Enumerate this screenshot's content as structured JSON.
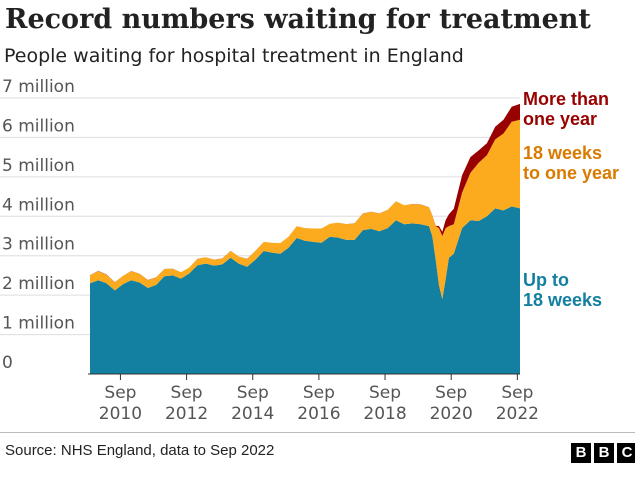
{
  "chart_data": {
    "type": "area",
    "stacked": true,
    "title": "Record numbers waiting for treatment",
    "subtitle": "People waiting for hospital treatment in England",
    "ylim": [
      0,
      7000000
    ],
    "xlim": [
      2009.75,
      2022.75
    ],
    "y_ticks": [
      {
        "value": 0,
        "label": "0"
      },
      {
        "value": 1000000,
        "label": "1 million"
      },
      {
        "value": 2000000,
        "label": "2 million"
      },
      {
        "value": 3000000,
        "label": "3 million"
      },
      {
        "value": 4000000,
        "label": "4 million"
      },
      {
        "value": 5000000,
        "label": "5 million"
      },
      {
        "value": 6000000,
        "label": "6 million"
      },
      {
        "value": 7000000,
        "label": "7 million"
      }
    ],
    "x_ticks": [
      {
        "value": 2010.67,
        "month": "Sep",
        "year": "2010"
      },
      {
        "value": 2012.67,
        "month": "Sep",
        "year": "2012"
      },
      {
        "value": 2014.67,
        "month": "Sep",
        "year": "2014"
      },
      {
        "value": 2016.67,
        "month": "Sep",
        "year": "2016"
      },
      {
        "value": 2018.67,
        "month": "Sep",
        "year": "2018"
      },
      {
        "value": 2020.67,
        "month": "Sep",
        "year": "2020"
      },
      {
        "value": 2022.67,
        "month": "Sep",
        "year": "2022"
      }
    ],
    "grid": true,
    "x": [
      2009.75,
      2010.0,
      2010.25,
      2010.5,
      2010.75,
      2011.0,
      2011.25,
      2011.5,
      2011.75,
      2012.0,
      2012.25,
      2012.5,
      2012.75,
      2013.0,
      2013.25,
      2013.5,
      2013.75,
      2014.0,
      2014.25,
      2014.5,
      2014.75,
      2015.0,
      2015.25,
      2015.5,
      2015.75,
      2016.0,
      2016.25,
      2016.5,
      2016.75,
      2017.0,
      2017.25,
      2017.5,
      2017.75,
      2018.0,
      2018.25,
      2018.5,
      2018.75,
      2019.0,
      2019.25,
      2019.5,
      2019.75,
      2020.0,
      2020.1,
      2020.2,
      2020.3,
      2020.4,
      2020.5,
      2020.6,
      2020.75,
      2021.0,
      2021.25,
      2021.5,
      2021.75,
      2022.0,
      2022.25,
      2022.5,
      2022.75
    ],
    "series": [
      {
        "name": "Up to 18 weeks",
        "color": "#1380a1",
        "values": [
          2300000,
          2380000,
          2300000,
          2120000,
          2280000,
          2380000,
          2320000,
          2180000,
          2260000,
          2480000,
          2500000,
          2420000,
          2550000,
          2760000,
          2800000,
          2750000,
          2780000,
          2950000,
          2800000,
          2720000,
          2900000,
          3120000,
          3080000,
          3050000,
          3200000,
          3450000,
          3380000,
          3350000,
          3330000,
          3480000,
          3460000,
          3400000,
          3400000,
          3650000,
          3680000,
          3620000,
          3700000,
          3900000,
          3800000,
          3820000,
          3800000,
          3750000,
          3500000,
          2900000,
          2250000,
          1900000,
          2400000,
          2950000,
          3050000,
          3700000,
          3900000,
          3880000,
          4000000,
          4200000,
          4150000,
          4250000,
          4200000
        ]
      },
      {
        "name": "18 weeks to one year",
        "color": "#fcab1e",
        "values": [
          200000,
          230000,
          220000,
          200000,
          210000,
          230000,
          220000,
          200000,
          190000,
          180000,
          170000,
          160000,
          150000,
          160000,
          160000,
          150000,
          150000,
          170000,
          180000,
          200000,
          220000,
          230000,
          250000,
          270000,
          280000,
          300000,
          320000,
          340000,
          360000,
          330000,
          380000,
          400000,
          420000,
          420000,
          430000,
          450000,
          460000,
          480000,
          480000,
          490000,
          500000,
          480000,
          520000,
          850000,
          1450000,
          1600000,
          1300000,
          800000,
          750000,
          900000,
          1200000,
          1480000,
          1550000,
          1750000,
          1950000,
          2150000,
          2250000
        ]
      },
      {
        "name": "More than one year",
        "color": "#990000",
        "values": [
          5000,
          5000,
          5000,
          5000,
          4000,
          3000,
          3000,
          3000,
          3000,
          2000,
          2000,
          2000,
          1000,
          1000,
          1000,
          1000,
          1000,
          1000,
          1000,
          1000,
          1000,
          1000,
          1000,
          1000,
          1000,
          1000,
          1000,
          1000,
          1000,
          1000,
          1000,
          2000,
          2000,
          3000,
          3000,
          3000,
          3000,
          2000,
          2000,
          2000,
          2000,
          2000,
          5000,
          11000,
          50000,
          110000,
          200000,
          300000,
          390000,
          440000,
          400000,
          310000,
          300000,
          320000,
          350000,
          380000,
          400000
        ]
      }
    ],
    "series_labels": [
      {
        "series": 2,
        "lines": [
          "More than",
          "one year"
        ],
        "color": "#990000"
      },
      {
        "series": 1,
        "lines": [
          "18 weeks",
          "to one year"
        ],
        "color": "#da7b00"
      },
      {
        "series": 0,
        "lines": [
          "Up to",
          "18 weeks"
        ],
        "color": "#1380a1"
      }
    ]
  },
  "source": "Source: NHS England, data to Sep 2022",
  "logo": {
    "letters": [
      "B",
      "B",
      "C"
    ]
  }
}
